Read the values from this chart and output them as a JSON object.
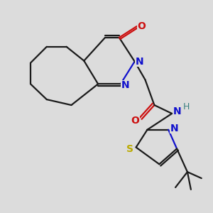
{
  "background_color": "#dcdcdc",
  "bond_color": "#1a1a1a",
  "atom_colors": {
    "N": "#1010cc",
    "O": "#cc1010",
    "S": "#bbaa00",
    "H": "#3a8080",
    "C": "#1a1a1a"
  },
  "figsize": [
    3.0,
    3.0
  ],
  "dpi": 100
}
